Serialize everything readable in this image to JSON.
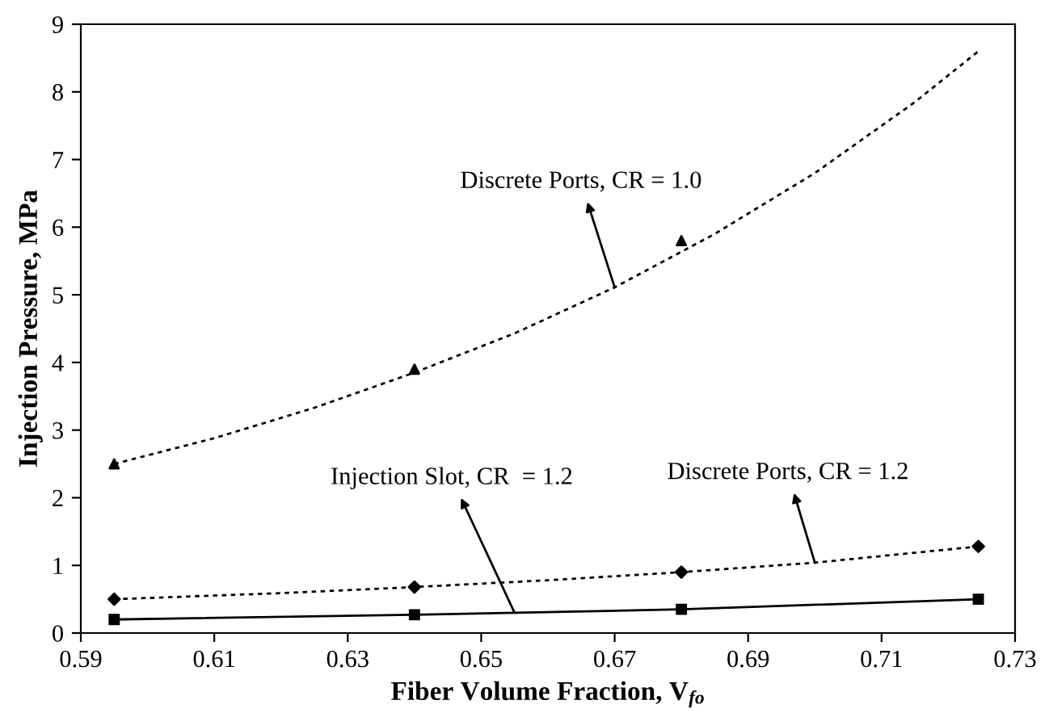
{
  "chart_data": {
    "type": "line",
    "xlabel": "Fiber Volume Fraction, V$_{fo}$",
    "ylabel": "Injection Pressure, MPa",
    "xlim": [
      0.59,
      0.73
    ],
    "xticks": [
      {
        "value": 0.59,
        "label": "0.59"
      },
      {
        "value": 0.61,
        "label": "0.61"
      },
      {
        "value": 0.63,
        "label": "0.63"
      },
      {
        "value": 0.65,
        "label": "0.65"
      },
      {
        "value": 0.67,
        "label": "0.67"
      },
      {
        "value": 0.69,
        "label": "0.69"
      },
      {
        "value": 0.71,
        "label": "0.71"
      },
      {
        "value": 0.73,
        "label": "0.73"
      }
    ],
    "ylim": [
      0,
      9
    ],
    "yticks": [
      0,
      1,
      2,
      3,
      4,
      5,
      6,
      7,
      8,
      9
    ],
    "grid": false,
    "legend": false,
    "series": [
      {
        "type": "scatter",
        "marker": "triangle",
        "color": "#000000",
        "x": [
          0.595,
          0.64,
          0.68
        ],
        "values": [
          2.5,
          3.9,
          5.8
        ]
      },
      {
        "line_style": "dotted",
        "marker": "none",
        "color": "#000000",
        "x": [
          0.595,
          0.61,
          0.625,
          0.64,
          0.655,
          0.67,
          0.685,
          0.7,
          0.715,
          0.7245
        ],
        "values": [
          2.5,
          2.88,
          3.33,
          3.85,
          4.43,
          5.11,
          5.9,
          6.8,
          7.85,
          8.6
        ]
      },
      {
        "type": "scatter",
        "marker": "diamond",
        "color": "#000000",
        "x": [
          0.595,
          0.64,
          0.68,
          0.7245
        ],
        "values": [
          0.5,
          0.68,
          0.9,
          1.28
        ]
      },
      {
        "line_style": "dotted",
        "marker": "none",
        "color": "#000000",
        "x": [
          0.595,
          0.62,
          0.64,
          0.66,
          0.68,
          0.7,
          0.7245
        ],
        "values": [
          0.5,
          0.59,
          0.68,
          0.78,
          0.9,
          1.04,
          1.28
        ]
      },
      {
        "line_style": "solid",
        "marker": "square",
        "color": "#000000",
        "x": [
          0.595,
          0.64,
          0.68,
          0.7245
        ],
        "values": [
          0.2,
          0.27,
          0.35,
          0.5
        ]
      }
    ],
    "annotations": [
      {
        "text": "Discrete Ports, CR = 1.0",
        "x": 0.67,
        "y": 5.11
      },
      {
        "text": "Injection Slot, CR  = 1.2",
        "x": 0.655,
        "y": 0.3
      },
      {
        "text": "Discrete Ports, CR = 1.2",
        "x": 0.7,
        "y": 1.04
      }
    ]
  }
}
